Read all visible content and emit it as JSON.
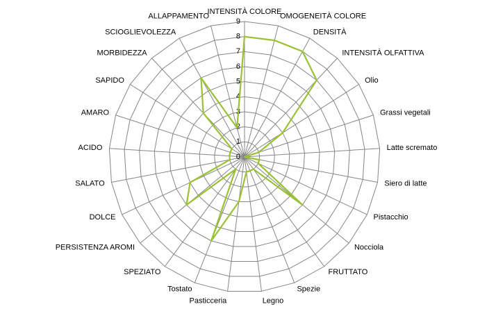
{
  "chart_data": {
    "type": "radar",
    "categories": [
      "INTENSITÀ COLORE",
      "OMOGENEITÀ COLORE",
      "DENSITÀ",
      "INTENSITÀ OLFATTIVA",
      "Olio",
      "Grassi vegetali",
      "Latte scremato",
      "Siero di latte",
      "Pistacchio",
      "Nocciola",
      "FRUTTATO",
      "Spezie",
      "Legno",
      "Pasticceria",
      "Tostato",
      "SPEZIATO",
      "PERSISTENZA AROMI",
      "DOLCE",
      "SALATO",
      "ACIDO",
      "AMARO",
      "SAPIDO",
      "MORBIDEZZA",
      "SCIOGLIEVOLEZZA",
      "ALLAPPAMENTO"
    ],
    "values": [
      8,
      8,
      8,
      7,
      3,
      1,
      0,
      1,
      1,
      5,
      1,
      1,
      1,
      3,
      6,
      1,
      5,
      4,
      1,
      1,
      1,
      1,
      4,
      6,
      2
    ],
    "color": "#9bc234",
    "ylim": [
      0,
      9
    ],
    "yticks": [
      0,
      1,
      2,
      3,
      4,
      5,
      6,
      7,
      8,
      9
    ],
    "grid": true
  }
}
